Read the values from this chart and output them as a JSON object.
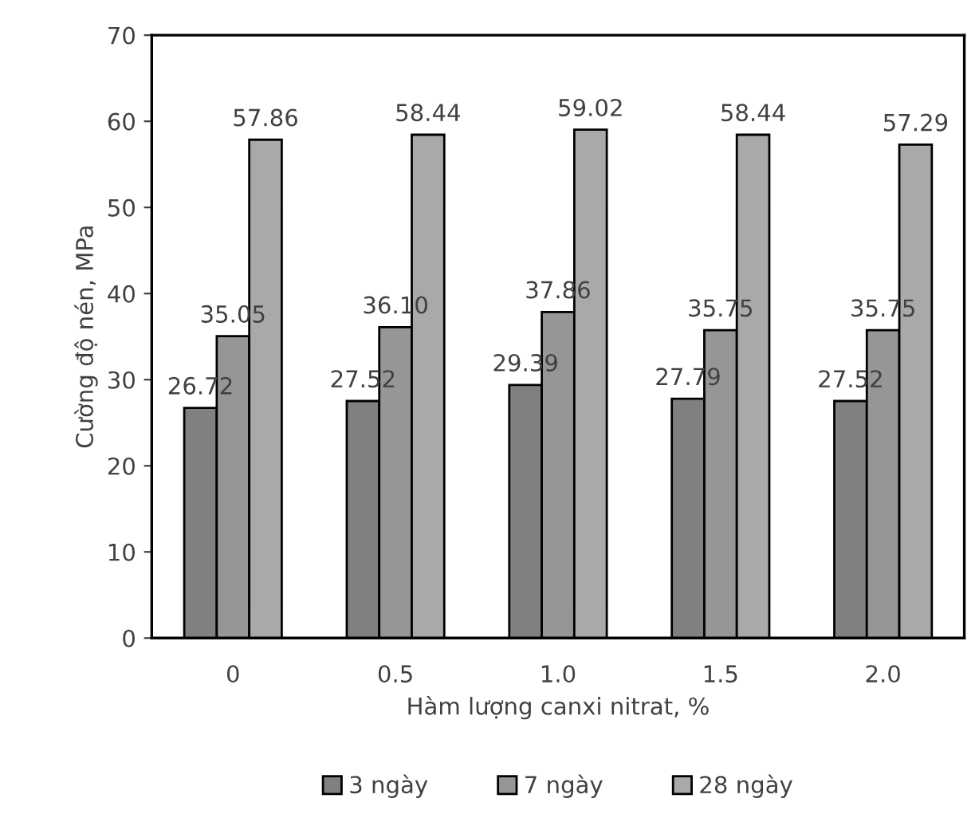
{
  "chart_data": {
    "type": "bar",
    "xlabel": "Hàm lượng canxi nitrat, %",
    "ylabel": "Cường độ nén, MPa",
    "categories": [
      "0",
      "0.5",
      "1.0",
      "1.5",
      "2.0"
    ],
    "series": [
      {
        "name": "3 ngày",
        "color": "#808080",
        "values": [
          26.72,
          27.52,
          29.39,
          27.79,
          27.52
        ],
        "value_labels": [
          "26.72",
          "27.52",
          "29.39",
          "27.79",
          "27.52"
        ]
      },
      {
        "name": "7 ngày",
        "color": "#969696",
        "values": [
          35.05,
          36.1,
          37.86,
          35.75,
          35.75
        ],
        "value_labels": [
          "35.05",
          "36.10",
          "37.86",
          "35.75",
          "35.75"
        ]
      },
      {
        "name": "28 ngày",
        "color": "#a9a9a9",
        "values": [
          57.86,
          58.44,
          59.02,
          58.44,
          57.29
        ],
        "value_labels": [
          "57.86",
          "58.44",
          "59.02",
          "58.44",
          "57.29"
        ]
      }
    ],
    "ylim": [
      0,
      70
    ],
    "yticks": [
      0,
      10,
      20,
      30,
      40,
      50,
      60,
      70
    ],
    "grid": false,
    "legend": "bottom"
  }
}
